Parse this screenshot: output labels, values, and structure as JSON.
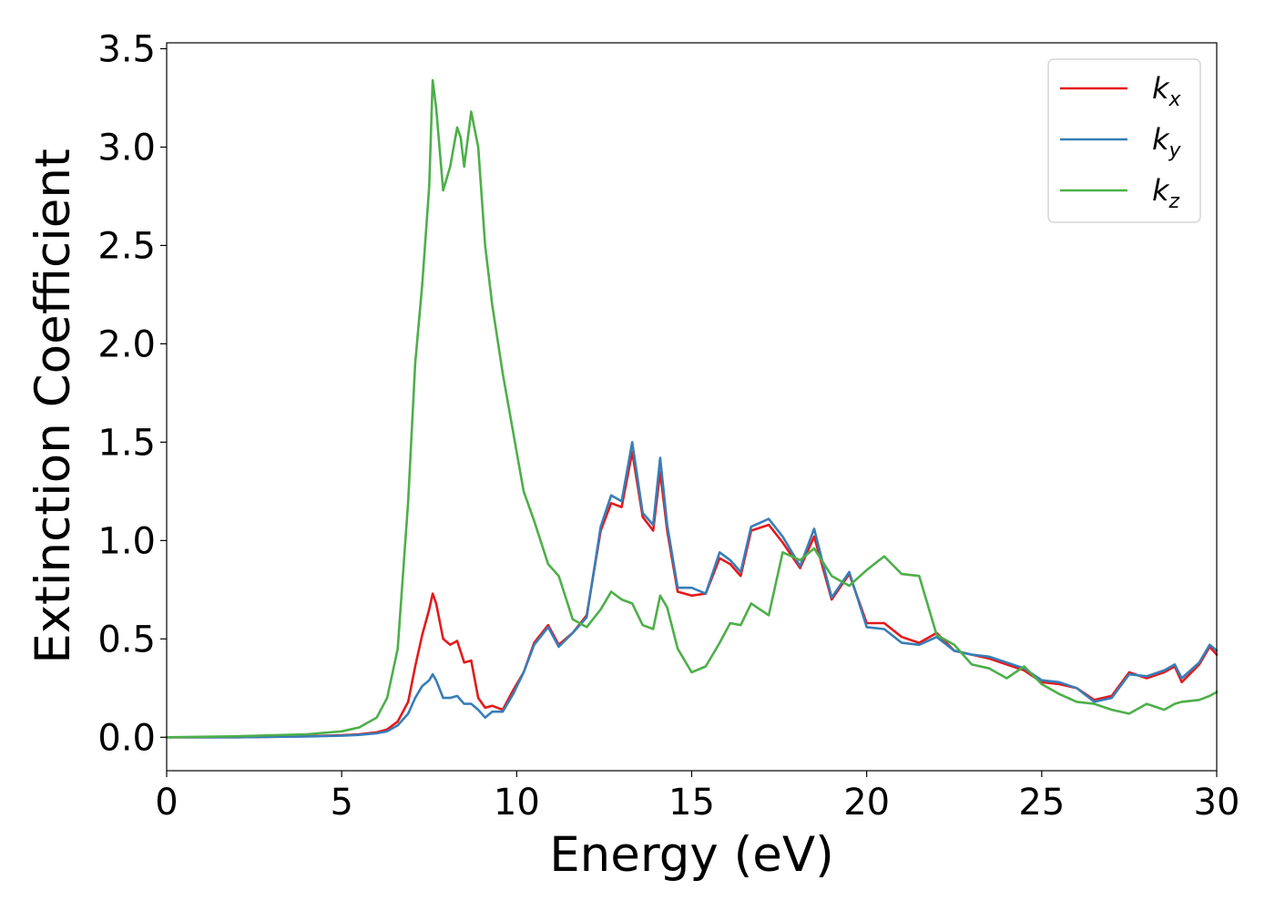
{
  "chart_data": {
    "type": "line",
    "title": "",
    "xlabel": "Energy (eV)",
    "ylabel": "Extinction Coefficient",
    "xlim": [
      0,
      30
    ],
    "ylim": [
      -0.17,
      3.53
    ],
    "xticks": [
      0,
      5,
      10,
      15,
      20,
      25,
      30
    ],
    "xtick_labels": [
      "0",
      "5",
      "10",
      "15",
      "20",
      "25",
      "30"
    ],
    "yticks": [
      0.0,
      0.5,
      1.0,
      1.5,
      2.0,
      2.5,
      3.0,
      3.5
    ],
    "ytick_labels": [
      "0.0",
      "0.5",
      "1.0",
      "1.5",
      "2.0",
      "2.5",
      "3.0",
      "3.5"
    ],
    "grid": false,
    "legend_position": "top-right",
    "series": [
      {
        "name": "k_x",
        "base": "k",
        "sub": "x",
        "color": "#e41a1c",
        "x": [
          0,
          2,
          4,
          5,
          5.5,
          6,
          6.3,
          6.6,
          6.9,
          7.1,
          7.3,
          7.5,
          7.6,
          7.7,
          7.9,
          8.1,
          8.3,
          8.5,
          8.7,
          8.9,
          9.1,
          9.3,
          9.6,
          9.9,
          10.2,
          10.5,
          10.9,
          11.2,
          11.6,
          12.0,
          12.4,
          12.7,
          13.0,
          13.3,
          13.6,
          13.9,
          14.1,
          14.3,
          14.6,
          15.0,
          15.4,
          15.8,
          16.1,
          16.4,
          16.7,
          17.2,
          17.6,
          18.1,
          18.5,
          19.0,
          19.5,
          20.0,
          20.5,
          21.0,
          21.5,
          22.0,
          22.5,
          23.0,
          23.5,
          24.0,
          24.5,
          25.0,
          25.5,
          26.0,
          26.5,
          27.0,
          27.5,
          28.0,
          28.5,
          28.8,
          29.0,
          29.5,
          29.8,
          30.0
        ],
        "y": [
          0.0,
          0.0,
          0.005,
          0.01,
          0.015,
          0.025,
          0.04,
          0.08,
          0.18,
          0.36,
          0.52,
          0.65,
          0.73,
          0.68,
          0.5,
          0.47,
          0.49,
          0.38,
          0.39,
          0.2,
          0.15,
          0.16,
          0.14,
          0.24,
          0.33,
          0.48,
          0.57,
          0.47,
          0.53,
          0.62,
          1.05,
          1.19,
          1.17,
          1.45,
          1.12,
          1.05,
          1.35,
          1.05,
          0.74,
          0.72,
          0.73,
          0.91,
          0.88,
          0.82,
          1.05,
          1.08,
          0.99,
          0.86,
          1.02,
          0.7,
          0.83,
          0.58,
          0.58,
          0.51,
          0.48,
          0.53,
          0.44,
          0.42,
          0.4,
          0.37,
          0.34,
          0.28,
          0.27,
          0.25,
          0.19,
          0.21,
          0.33,
          0.3,
          0.33,
          0.36,
          0.28,
          0.37,
          0.46,
          0.42
        ]
      },
      {
        "name": "k_y",
        "base": "k",
        "sub": "y",
        "color": "#377eb8",
        "x": [
          0,
          2,
          4,
          5,
          5.5,
          6,
          6.3,
          6.6,
          6.9,
          7.1,
          7.3,
          7.5,
          7.6,
          7.7,
          7.9,
          8.1,
          8.3,
          8.5,
          8.7,
          8.9,
          9.1,
          9.3,
          9.6,
          9.9,
          10.2,
          10.5,
          10.9,
          11.2,
          11.6,
          12.0,
          12.4,
          12.7,
          13.0,
          13.3,
          13.6,
          13.9,
          14.1,
          14.3,
          14.6,
          15.0,
          15.4,
          15.8,
          16.1,
          16.4,
          16.7,
          17.2,
          17.6,
          18.1,
          18.5,
          19.0,
          19.5,
          20.0,
          20.5,
          21.0,
          21.5,
          22.0,
          22.5,
          23.0,
          23.5,
          24.0,
          24.5,
          25.0,
          25.5,
          26.0,
          26.5,
          27.0,
          27.5,
          28.0,
          28.5,
          28.8,
          29.0,
          29.5,
          29.8,
          30.0
        ],
        "y": [
          0.0,
          0.0,
          0.004,
          0.008,
          0.012,
          0.02,
          0.03,
          0.06,
          0.12,
          0.2,
          0.26,
          0.29,
          0.32,
          0.29,
          0.2,
          0.2,
          0.21,
          0.17,
          0.17,
          0.14,
          0.1,
          0.13,
          0.13,
          0.22,
          0.33,
          0.47,
          0.56,
          0.46,
          0.53,
          0.61,
          1.07,
          1.23,
          1.2,
          1.5,
          1.14,
          1.08,
          1.42,
          1.08,
          0.76,
          0.76,
          0.73,
          0.94,
          0.9,
          0.84,
          1.07,
          1.11,
          1.02,
          0.87,
          1.06,
          0.71,
          0.84,
          0.56,
          0.55,
          0.48,
          0.47,
          0.51,
          0.44,
          0.42,
          0.41,
          0.38,
          0.35,
          0.29,
          0.28,
          0.25,
          0.18,
          0.2,
          0.32,
          0.31,
          0.34,
          0.37,
          0.3,
          0.38,
          0.47,
          0.44
        ]
      },
      {
        "name": "k_z",
        "base": "k",
        "sub": "z",
        "color": "#4daf4a",
        "x": [
          0,
          2,
          4,
          5,
          5.5,
          6,
          6.3,
          6.6,
          6.9,
          7.1,
          7.3,
          7.5,
          7.6,
          7.7,
          7.9,
          8.1,
          8.3,
          8.4,
          8.5,
          8.7,
          8.9,
          9.1,
          9.3,
          9.6,
          9.9,
          10.2,
          10.5,
          10.9,
          11.2,
          11.6,
          12.0,
          12.4,
          12.7,
          13.0,
          13.3,
          13.6,
          13.9,
          14.1,
          14.3,
          14.6,
          15.0,
          15.4,
          15.8,
          16.1,
          16.4,
          16.7,
          17.2,
          17.6,
          18.1,
          18.5,
          19.0,
          19.5,
          20.0,
          20.5,
          21.0,
          21.5,
          22.0,
          22.5,
          23.0,
          23.5,
          24.0,
          24.5,
          25.0,
          25.5,
          26.0,
          26.5,
          27.0,
          27.5,
          28.0,
          28.5,
          28.8,
          29.0,
          29.5,
          29.8,
          30.0
        ],
        "y": [
          0.0,
          0.005,
          0.015,
          0.03,
          0.05,
          0.1,
          0.2,
          0.45,
          1.2,
          1.9,
          2.3,
          2.8,
          3.34,
          3.2,
          2.78,
          2.9,
          3.1,
          3.05,
          2.9,
          3.18,
          3.0,
          2.5,
          2.2,
          1.85,
          1.55,
          1.25,
          1.1,
          0.88,
          0.82,
          0.6,
          0.56,
          0.65,
          0.74,
          0.7,
          0.68,
          0.57,
          0.55,
          0.72,
          0.66,
          0.45,
          0.33,
          0.36,
          0.48,
          0.58,
          0.57,
          0.68,
          0.62,
          0.94,
          0.9,
          0.96,
          0.82,
          0.77,
          0.85,
          0.92,
          0.83,
          0.82,
          0.52,
          0.47,
          0.37,
          0.35,
          0.3,
          0.36,
          0.27,
          0.22,
          0.18,
          0.17,
          0.14,
          0.12,
          0.17,
          0.14,
          0.17,
          0.18,
          0.19,
          0.21,
          0.23
        ]
      }
    ]
  }
}
